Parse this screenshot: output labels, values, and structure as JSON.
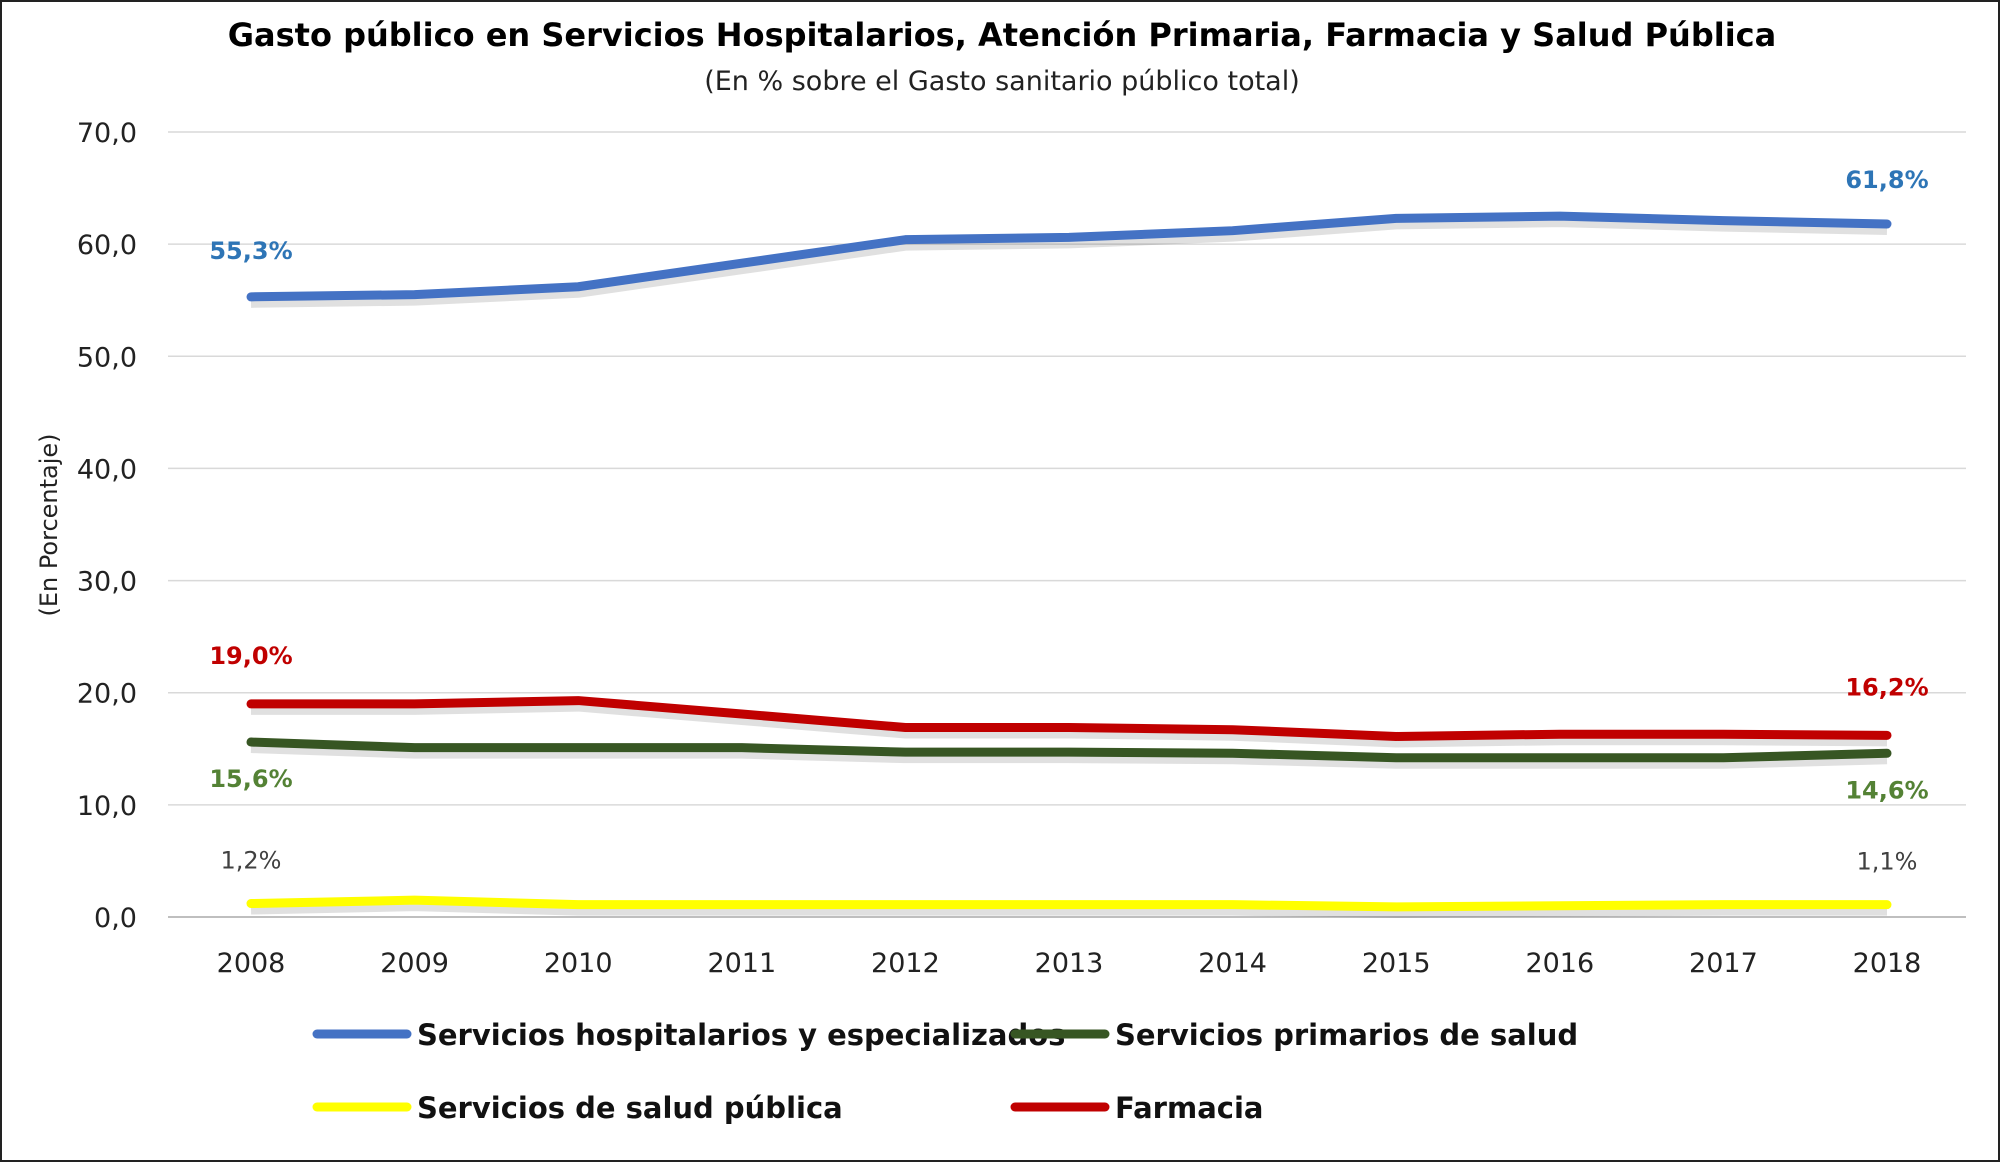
{
  "chart_data": {
    "type": "line",
    "title": "Gasto público en Servicios Hospitalarios, Atención Primaria, Farmacia y Salud Pública",
    "subtitle": "(En % sobre el Gasto sanitario público total)",
    "xlabel": "",
    "ylabel": "(En Porcentaje)",
    "ylim": [
      0,
      70
    ],
    "yticks": [
      "0,0",
      "10,0",
      "20,0",
      "30,0",
      "40,0",
      "50,0",
      "60,0",
      "70,0"
    ],
    "grid": true,
    "legend_position": "bottom",
    "categories": [
      "2008",
      "2009",
      "2010",
      "2011",
      "2012",
      "2013",
      "2014",
      "2015",
      "2016",
      "2017",
      "2018"
    ],
    "series": [
      {
        "name": "Servicios hospitalarios y especializados",
        "color": "#4472c4",
        "label_color": "#2e75b6",
        "values": [
          55.3,
          55.5,
          56.2,
          58.3,
          60.4,
          60.6,
          61.2,
          62.3,
          62.5,
          62.1,
          61.8
        ],
        "labels": {
          "first": "55,3%",
          "last": "61,8%"
        }
      },
      {
        "name": "Servicios primarios de salud",
        "color": "#375623",
        "label_color": "#548235",
        "values": [
          15.6,
          15.1,
          15.1,
          15.1,
          14.7,
          14.7,
          14.6,
          14.2,
          14.2,
          14.2,
          14.6
        ],
        "labels": {
          "first": "15,6%",
          "last": "14,6%"
        }
      },
      {
        "name": "Servicios de salud pública",
        "color": "#ffff00",
        "label_color": "#404040",
        "values": [
          1.2,
          1.5,
          1.1,
          1.1,
          1.1,
          1.1,
          1.1,
          0.9,
          1.0,
          1.1,
          1.1
        ],
        "labels": {
          "first": "1,2%",
          "last": "1,1%"
        }
      },
      {
        "name": "Farmacia",
        "color": "#c00000",
        "label_color": "#c00000",
        "values": [
          19.0,
          19.0,
          19.3,
          18.1,
          16.9,
          16.9,
          16.7,
          16.1,
          16.3,
          16.3,
          16.2
        ],
        "labels": {
          "first": "19,0%",
          "last": "16,2%"
        }
      }
    ]
  }
}
